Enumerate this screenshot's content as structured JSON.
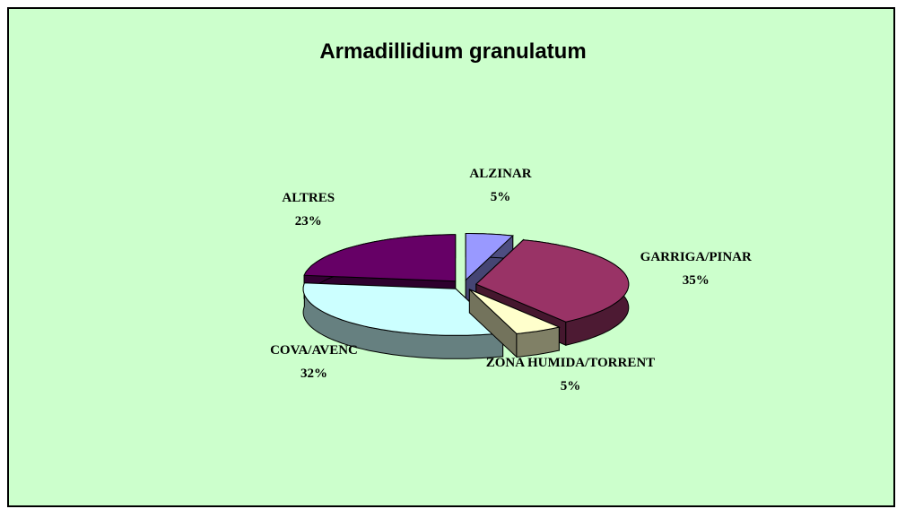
{
  "chart_data": {
    "type": "pie3d",
    "title": "Armadillidium granulatum",
    "categories": [
      "ALZINAR",
      "GARRIGA/PINAR",
      "ZONA HUMIDA/TORRENT",
      "COVA/AVENC",
      "ALTRES"
    ],
    "values": [
      5,
      35,
      5,
      32,
      23
    ],
    "value_labels": [
      "5%",
      "35%",
      "5%",
      "32%",
      "23%"
    ],
    "colors": [
      "#9999ff",
      "#993366",
      "#ffffcc",
      "#ccffff",
      "#660066"
    ]
  }
}
